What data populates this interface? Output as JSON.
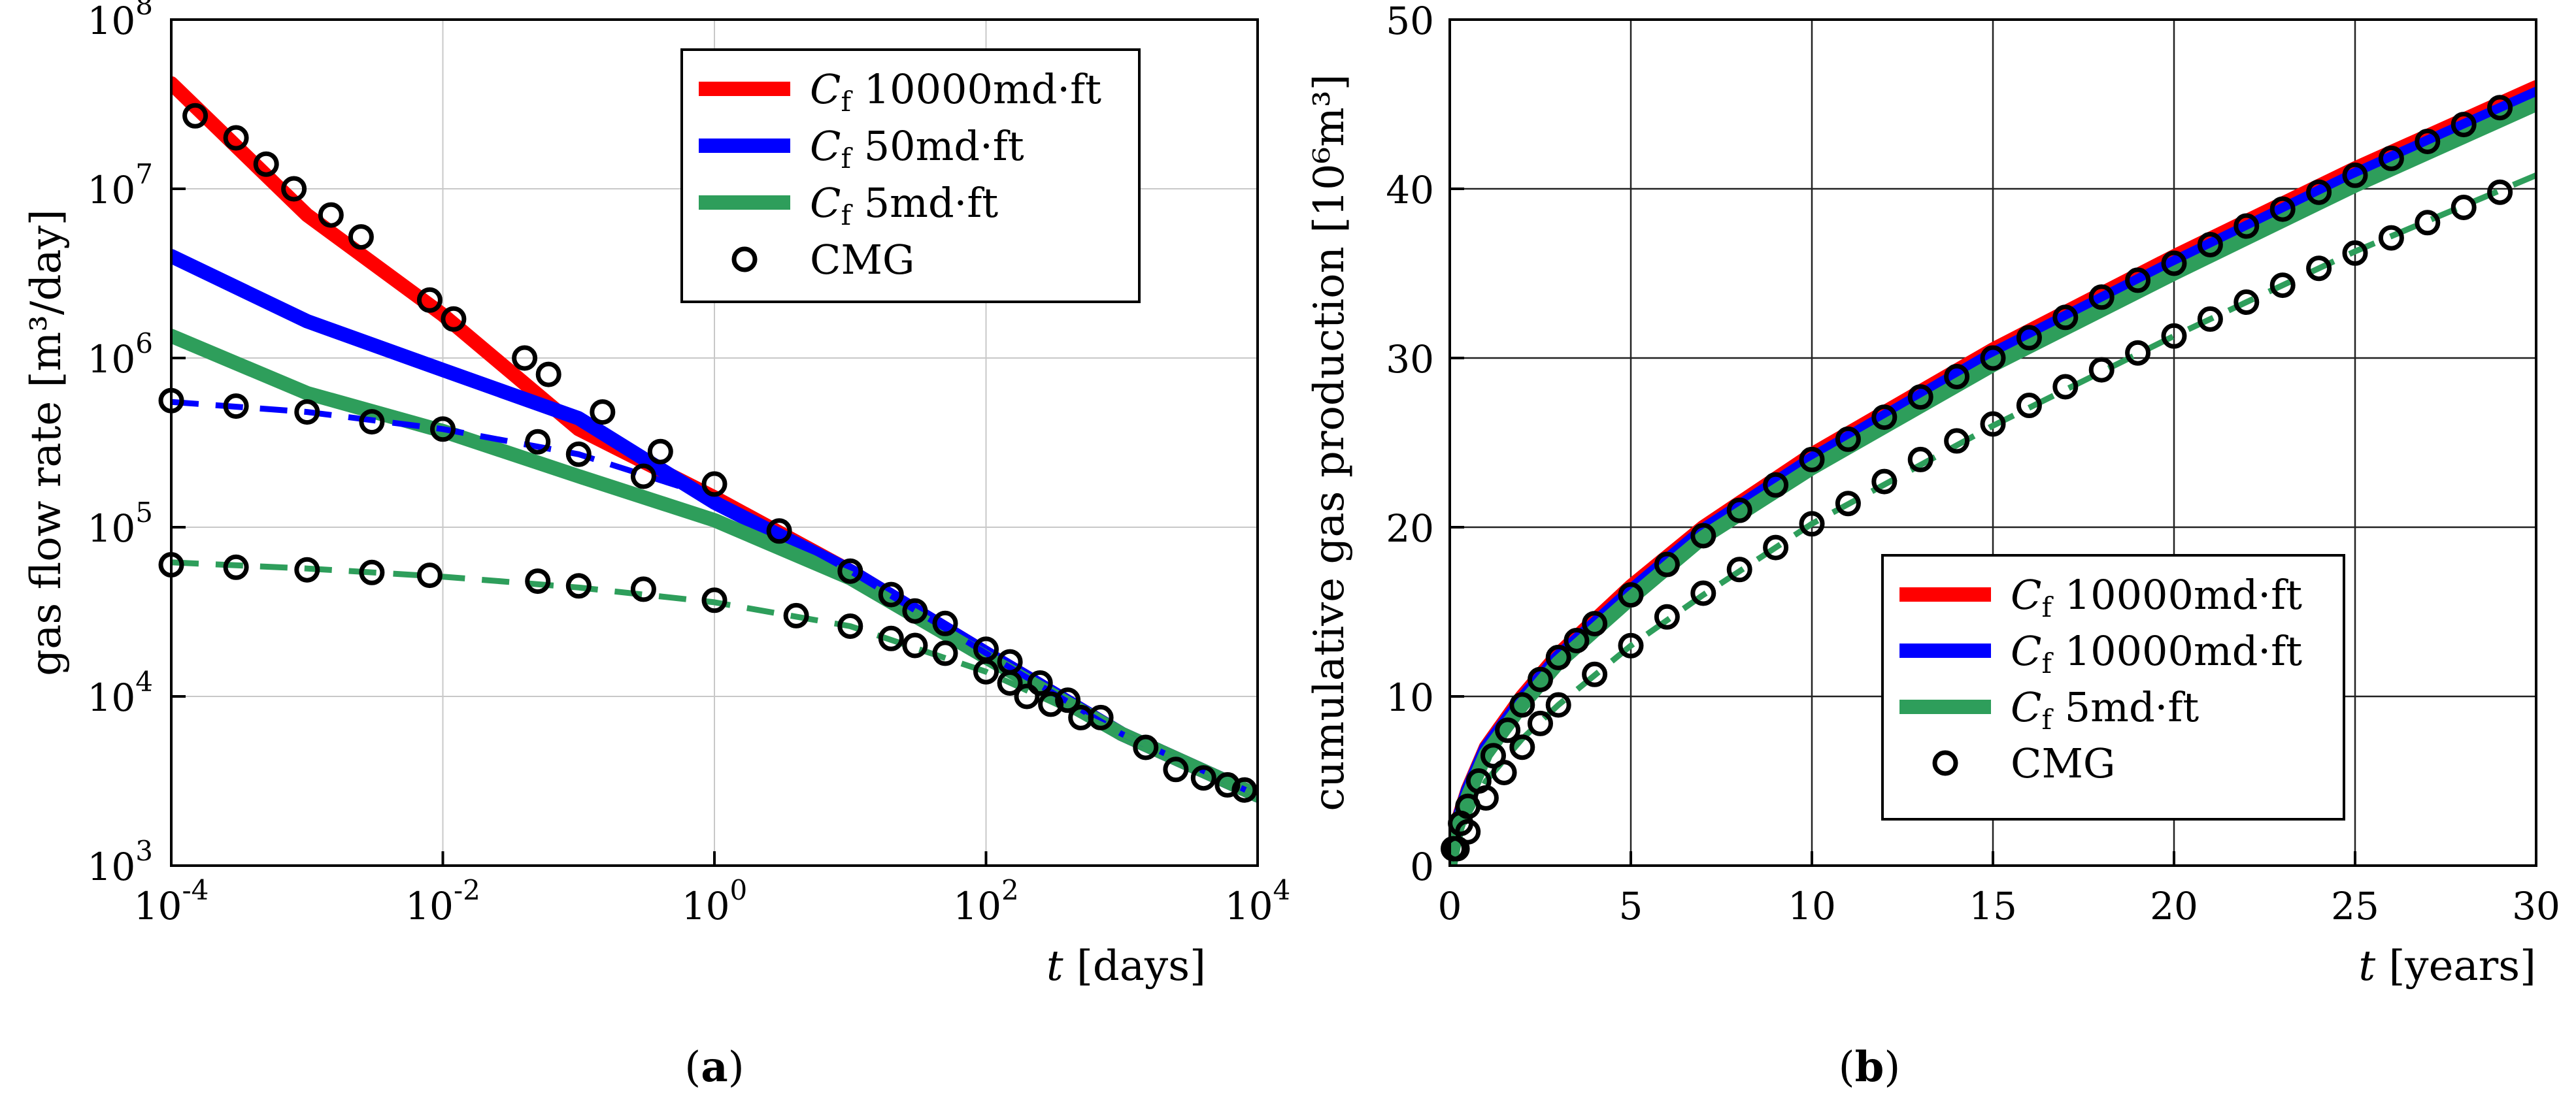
{
  "chart_data": [
    {
      "type": "line",
      "panel_caption": "(a)",
      "caption_letter": "a",
      "xscale": "log",
      "yscale": "log",
      "xlim": [
        0.0001,
        10000
      ],
      "ylim": [
        1000,
        100000000
      ],
      "xlabel_var": "t",
      "xlabel_unit": "[days]",
      "ylabel": "gas flow rate [m³/day]",
      "x_ticks": [
        {
          "value": 0.0001,
          "base": "10",
          "exp": "-4"
        },
        {
          "value": 0.01,
          "base": "10",
          "exp": "-2"
        },
        {
          "value": 1,
          "base": "10",
          "exp": "0"
        },
        {
          "value": 100,
          "base": "10",
          "exp": "2"
        },
        {
          "value": 10000,
          "base": "10",
          "exp": "4"
        }
      ],
      "y_ticks": [
        {
          "value": 1000,
          "base": "10",
          "exp": "3"
        },
        {
          "value": 10000,
          "base": "10",
          "exp": "4"
        },
        {
          "value": 100000,
          "base": "10",
          "exp": "5"
        },
        {
          "value": 1000000,
          "base": "10",
          "exp": "6"
        },
        {
          "value": 10000000,
          "base": "10",
          "exp": "7"
        },
        {
          "value": 100000000,
          "base": "10",
          "exp": "8"
        }
      ],
      "grid": true,
      "legend_position": "top-right",
      "legend": [
        {
          "kind": "line",
          "color": "#ff0000",
          "sym": "C",
          "sub": "f",
          "label": "10000md·ft"
        },
        {
          "kind": "line",
          "color": "#0000ff",
          "sym": "C",
          "sub": "f",
          "label": "50md·ft"
        },
        {
          "kind": "line",
          "color": "#2e9e5b",
          "sym": "C",
          "sub": "f",
          "label": "5md·ft"
        },
        {
          "kind": "marker",
          "color": "#000000",
          "label": "CMG"
        }
      ],
      "series": [
        {
          "name": "Cf 10000md·ft",
          "color": "#ff0000",
          "style": "solid",
          "x": [
            0.0001,
            0.001,
            0.01,
            0.1,
            1,
            10,
            100,
            1000,
            10000
          ],
          "y": [
            42000000,
            7000000,
            1800000,
            380000,
            150000,
            55000,
            18000,
            6000,
            2600
          ]
        },
        {
          "name": "Cf 50md·ft",
          "color": "#0000ff",
          "style": "solid",
          "x": [
            0.0001,
            0.001,
            0.01,
            0.1,
            1,
            10,
            100,
            1000,
            10000
          ],
          "y": [
            4000000,
            1650000,
            850000,
            440000,
            140000,
            55000,
            18000,
            6000,
            2600
          ]
        },
        {
          "name": "Cf 5md·ft",
          "color": "#2e9e5b",
          "style": "solid",
          "x": [
            0.0001,
            0.001,
            0.01,
            0.1,
            1,
            10,
            100,
            1000,
            10000
          ],
          "y": [
            1350000,
            620000,
            370000,
            200000,
            110000,
            50000,
            17000,
            6000,
            2600
          ]
        },
        {
          "name": "50md·ft (dashed)",
          "color": "#0000ff",
          "style": "dashed",
          "x": [
            0.0001,
            0.001,
            0.01,
            0.1,
            1,
            10,
            100,
            1000,
            10000
          ],
          "y": [
            550000,
            480000,
            380000,
            270000,
            150000,
            55000,
            18000,
            6000,
            2600
          ]
        },
        {
          "name": "5md·ft (dashed)",
          "color": "#2e9e5b",
          "style": "dashed",
          "x": [
            0.0001,
            0.001,
            0.01,
            0.1,
            1,
            10,
            100,
            1000,
            10000
          ],
          "y": [
            62000,
            57000,
            51000,
            44000,
            36000,
            26000,
            14000,
            6000,
            2600
          ]
        }
      ],
      "markers": [
        {
          "name": "CMG (red)",
          "x": [
            0.00015,
            0.0003,
            0.0005,
            0.0008,
            0.0015,
            0.0025,
            0.008,
            0.012,
            0.04,
            0.06,
            0.15,
            0.4,
            1,
            3,
            10,
            20,
            30,
            50,
            100,
            150,
            250,
            400,
            700,
            1500,
            2500,
            4000,
            6000,
            8000
          ],
          "y": [
            27000000,
            20000000,
            14000000,
            10000000,
            7000000,
            5200000,
            2200000,
            1700000,
            1000000,
            800000,
            480000,
            280000,
            180000,
            95000,
            55000,
            40000,
            32000,
            27000,
            19000,
            16000,
            12000,
            9500,
            7500,
            5000,
            3700,
            3300,
            3000,
            2800
          ]
        },
        {
          "name": "CMG (blue)",
          "x": [
            0.0001,
            0.0003,
            0.001,
            0.003,
            0.01,
            0.05,
            0.1,
            0.3
          ],
          "y": [
            560000,
            520000,
            480000,
            420000,
            380000,
            320000,
            270000,
            200000
          ]
        },
        {
          "name": "CMG (green)",
          "x": [
            0.0001,
            0.0003,
            0.001,
            0.003,
            0.008,
            0.05,
            0.1,
            0.3,
            1,
            4,
            10,
            20,
            30,
            50,
            100,
            150,
            200,
            300,
            500
          ],
          "y": [
            60000,
            58000,
            56000,
            54000,
            52000,
            48000,
            45000,
            43000,
            37000,
            30000,
            26000,
            22000,
            20000,
            18000,
            14000,
            12000,
            10000,
            9000,
            7500
          ]
        }
      ]
    },
    {
      "type": "line",
      "panel_caption": "(b)",
      "caption_letter": "b",
      "xscale": "linear",
      "yscale": "linear",
      "xlim": [
        0,
        30
      ],
      "ylim": [
        0,
        50
      ],
      "xlabel_var": "t",
      "xlabel_unit": "[years]",
      "ylabel": "cumulative gas production [10⁶m³]",
      "x_ticks": [
        0,
        5,
        10,
        15,
        20,
        25,
        30
      ],
      "y_ticks": [
        0,
        10,
        20,
        30,
        40,
        50
      ],
      "grid": true,
      "legend_position": "bottom-right",
      "legend": [
        {
          "kind": "line",
          "color": "#ff0000",
          "sym": "C",
          "sub": "f",
          "label": "10000md·ft"
        },
        {
          "kind": "line",
          "color": "#0000ff",
          "sym": "C",
          "sub": "f",
          "label": "10000md·ft"
        },
        {
          "kind": "line",
          "color": "#2e9e5b",
          "sym": "C",
          "sub": "f",
          "label": "5md·ft"
        },
        {
          "kind": "marker",
          "color": "#000000",
          "label": "CMG"
        }
      ],
      "series": [
        {
          "name": "Cf 10000md·ft",
          "color": "#ff0000",
          "style": "solid",
          "x": [
            0,
            0.2,
            0.5,
            1,
            2,
            3,
            5,
            7,
            10,
            15,
            20,
            25,
            30
          ],
          "y": [
            0,
            2.5,
            4.5,
            7,
            10,
            12.5,
            16.5,
            20,
            24.3,
            30.5,
            36,
            41.2,
            46
          ]
        },
        {
          "name": "Cf 10000md·ft (blue)",
          "color": "#0000ff",
          "style": "solid",
          "x": [
            0,
            0.2,
            0.5,
            1,
            2,
            3,
            5,
            7,
            10,
            15,
            20,
            25,
            30
          ],
          "y": [
            0,
            2.4,
            4.4,
            6.9,
            9.8,
            12.3,
            16.2,
            19.8,
            24,
            30.2,
            35.6,
            40.8,
            45.6
          ]
        },
        {
          "name": "Cf 5md·ft",
          "color": "#2e9e5b",
          "style": "solid",
          "x": [
            0,
            0.2,
            0.5,
            1,
            2,
            3,
            5,
            7,
            10,
            15,
            20,
            25,
            30
          ],
          "y": [
            0,
            2.2,
            4.1,
            6.6,
            9.5,
            12,
            15.8,
            19.4,
            23.5,
            29.6,
            35,
            40.2,
            45
          ]
        },
        {
          "name": "5md·ft (dashed)",
          "color": "#2e9e5b",
          "style": "dashed",
          "x": [
            0,
            0.2,
            0.5,
            1,
            2,
            3,
            5,
            7,
            10,
            15,
            20,
            25,
            30
          ],
          "y": [
            0,
            1.5,
            3,
            5,
            7.5,
            9.5,
            13,
            16,
            20.2,
            26,
            31.3,
            36.3,
            40.8
          ]
        }
      ],
      "markers": [
        {
          "name": "CMG (upper)",
          "x": [
            0.1,
            0.3,
            0.5,
            0.8,
            1.2,
            1.6,
            2,
            2.5,
            3,
            3.5,
            4,
            5,
            6,
            7,
            8,
            9,
            10,
            11,
            12,
            13,
            14,
            15,
            16,
            17,
            18,
            19,
            20,
            21,
            22,
            23,
            24,
            25,
            26,
            27,
            28,
            29
          ],
          "y": [
            1,
            2.5,
            3.5,
            5,
            6.5,
            8,
            9.5,
            11,
            12.3,
            13.3,
            14.3,
            16,
            17.8,
            19.5,
            21,
            22.5,
            24,
            25.2,
            26.5,
            27.7,
            28.9,
            30,
            31.2,
            32.4,
            33.6,
            34.6,
            35.6,
            36.7,
            37.8,
            38.8,
            39.8,
            40.8,
            41.8,
            42.8,
            43.8,
            44.8
          ]
        },
        {
          "name": "CMG (lower)",
          "x": [
            0.2,
            0.5,
            1,
            1.5,
            2,
            2.5,
            3,
            4,
            5,
            6,
            7,
            8,
            9,
            10,
            11,
            12,
            13,
            14,
            15,
            16,
            17,
            18,
            19,
            20,
            21,
            22,
            23,
            24,
            25,
            26,
            27,
            28,
            29
          ],
          "y": [
            1,
            2,
            4,
            5.5,
            7,
            8.4,
            9.5,
            11.3,
            13,
            14.7,
            16.1,
            17.5,
            18.8,
            20.2,
            21.4,
            22.7,
            24,
            25.1,
            26.1,
            27.2,
            28.3,
            29.3,
            30.3,
            31.3,
            32.3,
            33.3,
            34.3,
            35.3,
            36.2,
            37.1,
            38,
            38.9,
            39.8
          ]
        }
      ]
    }
  ]
}
